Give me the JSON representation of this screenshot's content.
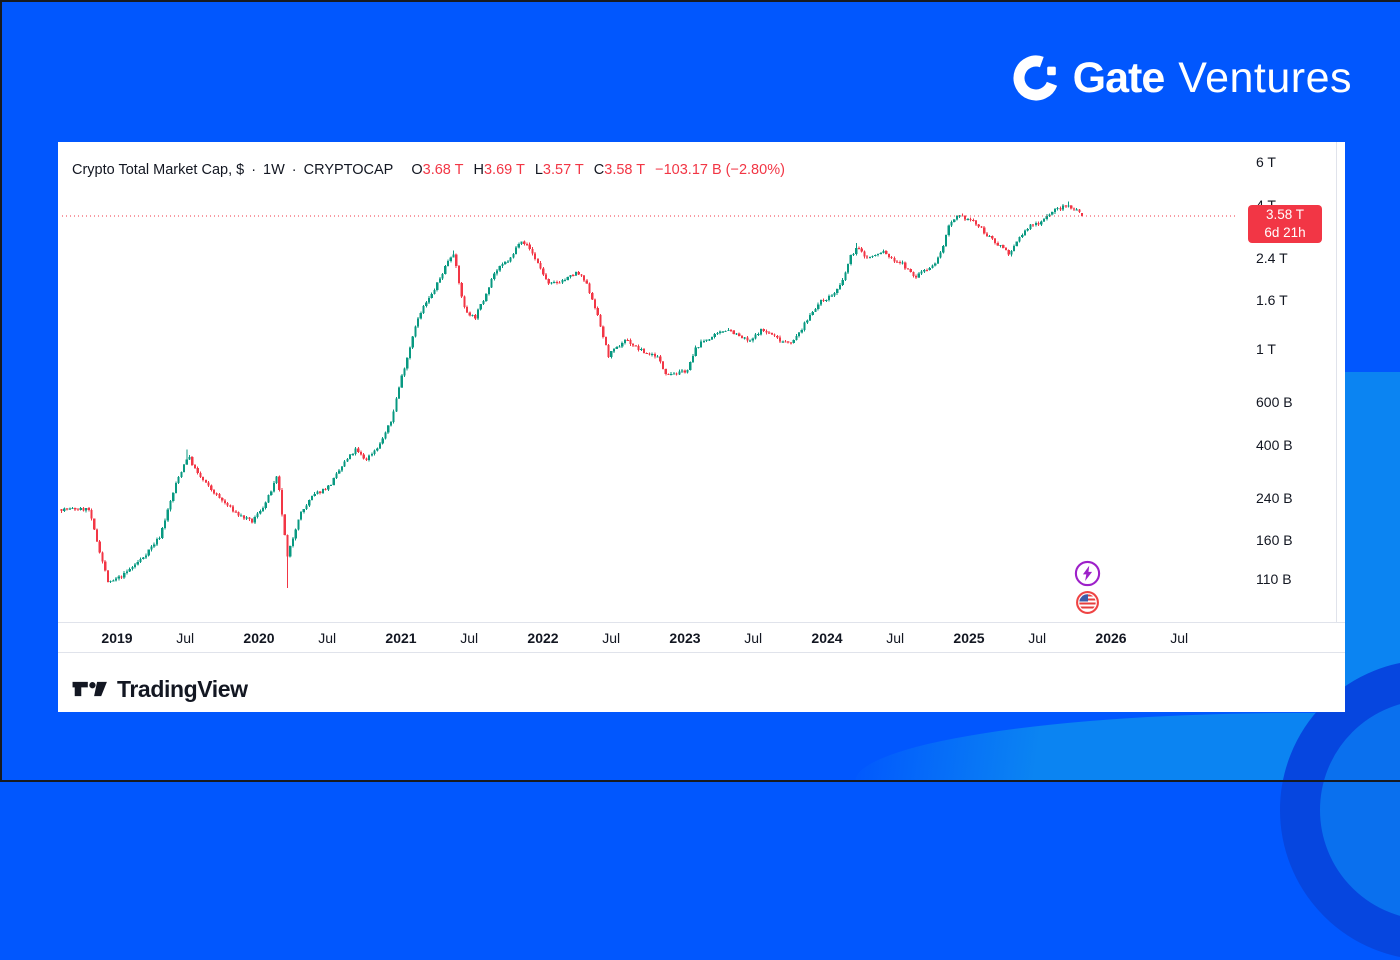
{
  "brand": {
    "name_bold": "Gate",
    "name_light": "Ventures",
    "logo_icon": "gate-circle-g-icon"
  },
  "attribution": {
    "tradingview": "TradingView"
  },
  "legend": {
    "title": "Crypto Total Market Cap, $",
    "separator": "·",
    "interval": "1W",
    "symbol": "CRYPTOCAP",
    "ohlc": [
      {
        "k": "O",
        "v": "3.68 T"
      },
      {
        "k": "H",
        "v": "3.69 T"
      },
      {
        "k": "L",
        "v": "3.57 T"
      },
      {
        "k": "C",
        "v": "3.58 T"
      }
    ],
    "change": "−103.17 B (−2.80%)"
  },
  "price_label": {
    "price": "3.58 T",
    "countdown": "6d 21h"
  },
  "event_markers": [
    {
      "icon": "lightning-event-icon",
      "color": "#9D20C9"
    },
    {
      "icon": "us-flag-event-icon",
      "color": "#EF4444"
    }
  ],
  "colors": {
    "background": "#0157FE",
    "background_light": "#0B84F2",
    "background_corner": "#0646DF",
    "card": "#FFFFFF",
    "candle_up": "#089981",
    "candle_down": "#F23645",
    "accent_red": "#F23645",
    "text_dark": "#131722",
    "grid_line": "#E0E3EB",
    "event_purple": "#9D20C9",
    "event_red": "#EF4444",
    "flag_blue": "#3B5BA9"
  },
  "chart_data": {
    "type": "candlestick",
    "title": "Crypto Total Market Cap, $",
    "symbol": "CRYPTOCAP",
    "interval": "1W",
    "scale": "logarithmic",
    "units": "billions USD",
    "grid": false,
    "y_axis": {
      "side": "right",
      "ticks": [
        {
          "label": "6 T",
          "value": 6000
        },
        {
          "label": "4 T",
          "value": 4000
        },
        {
          "label": "2.4 T",
          "value": 2400
        },
        {
          "label": "1.6 T",
          "value": 1600
        },
        {
          "label": "1 T",
          "value": 1000
        },
        {
          "label": "600 B",
          "value": 600
        },
        {
          "label": "400 B",
          "value": 400
        },
        {
          "label": "240 B",
          "value": 240
        },
        {
          "label": "160 B",
          "value": 160
        },
        {
          "label": "110 B",
          "value": 110
        }
      ]
    },
    "x_axis": {
      "ticks": [
        {
          "label": "2019",
          "t": 2019,
          "major": true
        },
        {
          "label": "Jul",
          "t": 2019.48,
          "major": false
        },
        {
          "label": "2020",
          "t": 2020,
          "major": true
        },
        {
          "label": "Jul",
          "t": 2020.48,
          "major": false
        },
        {
          "label": "2021",
          "t": 2021,
          "major": true
        },
        {
          "label": "Jul",
          "t": 2021.48,
          "major": false
        },
        {
          "label": "2022",
          "t": 2022,
          "major": true
        },
        {
          "label": "Jul",
          "t": 2022.48,
          "major": false
        },
        {
          "label": "2023",
          "t": 2023,
          "major": true
        },
        {
          "label": "Jul",
          "t": 2023.48,
          "major": false
        },
        {
          "label": "2024",
          "t": 2024,
          "major": true
        },
        {
          "label": "Jul",
          "t": 2024.48,
          "major": false
        },
        {
          "label": "2025",
          "t": 2025,
          "major": true
        },
        {
          "label": "Jul",
          "t": 2025.48,
          "major": false
        },
        {
          "label": "2026",
          "t": 2026,
          "major": true
        },
        {
          "label": "Jul",
          "t": 2026.48,
          "major": false
        }
      ]
    },
    "t_start": 2018.61,
    "t_end": 2025.81,
    "last_candle": {
      "open": 3680,
      "high": 3690,
      "low": 3570,
      "close": 3580
    },
    "last_close_line_value": 3580,
    "spikes": [
      {
        "t": 2019.5,
        "type": "high",
        "factor": 1.1
      },
      {
        "t": 2020.21,
        "type": "low",
        "factor": 0.74
      },
      {
        "t": 2021.37,
        "type": "high",
        "factor": 1.04
      },
      {
        "t": 2024.21,
        "type": "high",
        "factor": 1.05
      },
      {
        "t": 2025.7,
        "type": "high",
        "factor": 1.04
      }
    ],
    "anchors": [
      [
        2018.61,
        215
      ],
      [
        2018.8,
        215
      ],
      [
        2018.87,
        150
      ],
      [
        2018.94,
        105
      ],
      [
        2019.05,
        115
      ],
      [
        2019.18,
        135
      ],
      [
        2019.3,
        165
      ],
      [
        2019.42,
        280
      ],
      [
        2019.5,
        360
      ],
      [
        2019.57,
        300
      ],
      [
        2019.65,
        265
      ],
      [
        2019.75,
        230
      ],
      [
        2019.85,
        205
      ],
      [
        2019.95,
        190
      ],
      [
        2020.05,
        230
      ],
      [
        2020.13,
        295
      ],
      [
        2020.2,
        135
      ],
      [
        2020.28,
        200
      ],
      [
        2020.38,
        245
      ],
      [
        2020.5,
        270
      ],
      [
        2020.6,
        335
      ],
      [
        2020.68,
        380
      ],
      [
        2020.75,
        345
      ],
      [
        2020.85,
        400
      ],
      [
        2020.93,
        500
      ],
      [
        2021.0,
        750
      ],
      [
        2021.05,
        950
      ],
      [
        2021.1,
        1250
      ],
      [
        2021.16,
        1500
      ],
      [
        2021.22,
        1700
      ],
      [
        2021.28,
        2000
      ],
      [
        2021.34,
        2400
      ],
      [
        2021.37,
        2520
      ],
      [
        2021.41,
        1850
      ],
      [
        2021.45,
        1450
      ],
      [
        2021.52,
        1350
      ],
      [
        2021.58,
        1600
      ],
      [
        2021.65,
        2050
      ],
      [
        2021.72,
        2250
      ],
      [
        2021.78,
        2400
      ],
      [
        2021.84,
        2880
      ],
      [
        2021.9,
        2650
      ],
      [
        2021.97,
        2250
      ],
      [
        2022.04,
        1850
      ],
      [
        2022.1,
        1900
      ],
      [
        2022.16,
        1950
      ],
      [
        2022.24,
        2080
      ],
      [
        2022.3,
        1900
      ],
      [
        2022.36,
        1550
      ],
      [
        2022.42,
        1150
      ],
      [
        2022.46,
        940
      ],
      [
        2022.53,
        1020
      ],
      [
        2022.58,
        1100
      ],
      [
        2022.65,
        1020
      ],
      [
        2022.72,
        960
      ],
      [
        2022.8,
        940
      ],
      [
        2022.86,
        800
      ],
      [
        2022.95,
        790
      ],
      [
        2023.02,
        820
      ],
      [
        2023.08,
        1020
      ],
      [
        2023.14,
        1090
      ],
      [
        2023.22,
        1140
      ],
      [
        2023.3,
        1220
      ],
      [
        2023.38,
        1130
      ],
      [
        2023.46,
        1070
      ],
      [
        2023.53,
        1200
      ],
      [
        2023.6,
        1160
      ],
      [
        2023.68,
        1080
      ],
      [
        2023.76,
        1070
      ],
      [
        2023.83,
        1230
      ],
      [
        2023.9,
        1450
      ],
      [
        2023.97,
        1600
      ],
      [
        2024.04,
        1680
      ],
      [
        2024.1,
        1850
      ],
      [
        2024.17,
        2450
      ],
      [
        2024.21,
        2650
      ],
      [
        2024.28,
        2400
      ],
      [
        2024.34,
        2450
      ],
      [
        2024.4,
        2550
      ],
      [
        2024.46,
        2350
      ],
      [
        2024.52,
        2300
      ],
      [
        2024.58,
        2100
      ],
      [
        2024.62,
        1980
      ],
      [
        2024.68,
        2150
      ],
      [
        2024.74,
        2200
      ],
      [
        2024.8,
        2500
      ],
      [
        2024.86,
        3250
      ],
      [
        2024.92,
        3550
      ],
      [
        2024.97,
        3520
      ],
      [
        2025.03,
        3400
      ],
      [
        2025.09,
        3150
      ],
      [
        2025.16,
        2850
      ],
      [
        2025.24,
        2650
      ],
      [
        2025.29,
        2480
      ],
      [
        2025.36,
        2950
      ],
      [
        2025.43,
        3250
      ],
      [
        2025.5,
        3380
      ],
      [
        2025.56,
        3650
      ],
      [
        2025.63,
        3850
      ],
      [
        2025.7,
        3950
      ],
      [
        2025.75,
        3820
      ],
      [
        2025.79,
        3680
      ],
      [
        2025.81,
        3580
      ]
    ]
  }
}
